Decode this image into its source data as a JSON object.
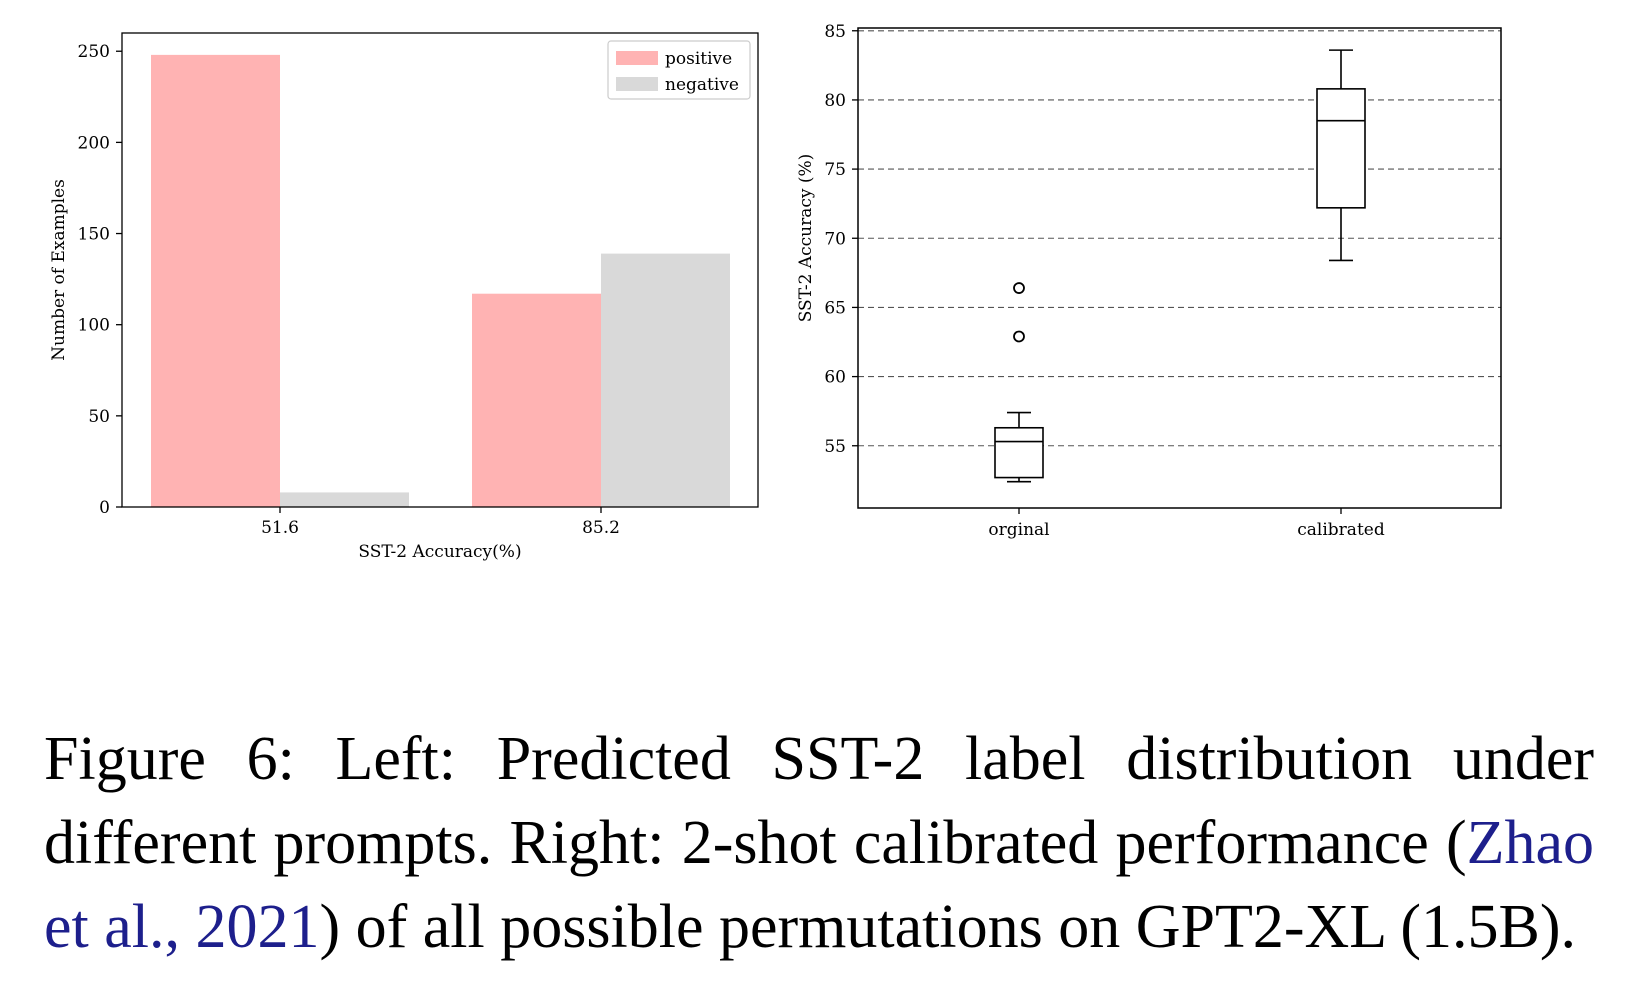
{
  "chart_data": [
    {
      "type": "bar",
      "title": "",
      "xlabel": "SST-2 Accuracy(%)",
      "ylabel": "Number of Examples",
      "categories": [
        "51.6",
        "85.2"
      ],
      "series": [
        {
          "name": "positive",
          "values": [
            248,
            117
          ],
          "color": "#ffb3b3"
        },
        {
          "name": "negative",
          "values": [
            8,
            139
          ],
          "color": "#d9d9d9"
        }
      ],
      "ylim": [
        0,
        260
      ],
      "yticks": [
        0,
        50,
        100,
        150,
        200,
        250
      ],
      "grid": false,
      "legend": "top-right"
    },
    {
      "type": "box",
      "title": "",
      "xlabel": "",
      "ylabel": "SST-2 Accuracy (%)",
      "categories": [
        "orginal",
        "calibrated"
      ],
      "boxes": [
        {
          "whisker_low": 52.4,
          "q1": 52.7,
          "median": 55.3,
          "q3": 56.3,
          "whisker_high": 57.4,
          "outliers": [
            62.9,
            66.4
          ]
        },
        {
          "whisker_low": 68.4,
          "q1": 72.2,
          "median": 78.5,
          "q3": 80.8,
          "whisker_high": 83.6,
          "outliers": []
        }
      ],
      "ylim": [
        50.5,
        85.2
      ],
      "yticks": [
        55,
        60,
        65,
        70,
        75,
        80,
        85
      ],
      "grid": true,
      "grid_style": "dashed-horizontal"
    }
  ],
  "caption": {
    "before": "Figure 6: Left: Predicted SST-2 label distribution under different prompts. Right: 2-shot calibrated performance (",
    "citation": "Zhao et al., 2021",
    "after": ") of all possible permutations on GPT2-XL (1.5B)."
  }
}
